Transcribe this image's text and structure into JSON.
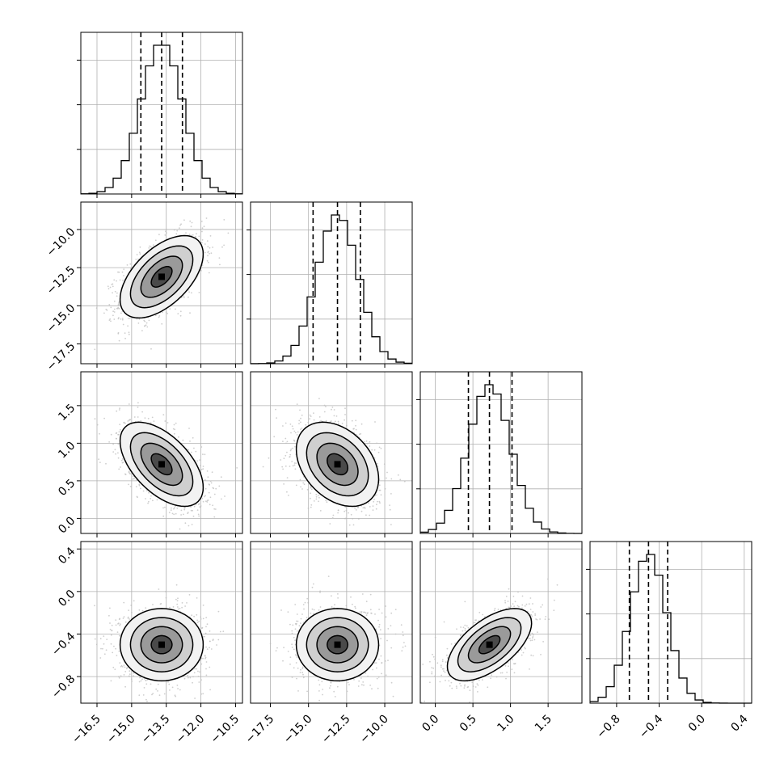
{
  "chart_data": {
    "type": "corner",
    "parameters": 4,
    "colors": {
      "frame": "#000000",
      "grid": "#b0b0b0",
      "scatter": "#bdbdbd",
      "hist": "#000000"
    },
    "grid": true,
    "axes": [
      {
        "range": [
          -17.2,
          -10.2
        ],
        "ticks": [
          -16.5,
          -15.0,
          -13.5,
          -12.0,
          -10.5
        ],
        "tick_labels": [
          "−16.5",
          "−15.0",
          "−13.5",
          "−12.0",
          "−10.5"
        ],
        "mean": -13.7,
        "sd": 0.9,
        "quantiles": [
          -14.6,
          -13.7,
          -12.8
        ]
      },
      {
        "range": [
          -18.8,
          -8.2
        ],
        "ticks": [
          -17.5,
          -15.0,
          -12.5,
          -10.0
        ],
        "tick_labels": [
          "−17.5",
          "−15.0",
          "−12.5",
          "−10.0"
        ],
        "mean": -13.1,
        "sd": 1.35,
        "quantiles": [
          -14.7,
          -13.1,
          -11.6
        ]
      },
      {
        "range": [
          -0.2,
          1.95
        ],
        "ticks": [
          0.0,
          0.5,
          1.0,
          1.5
        ],
        "tick_labels": [
          "0.0",
          "0.5",
          "1.0",
          "1.5"
        ],
        "mean": 0.72,
        "sd": 0.28,
        "quantiles": [
          0.44,
          0.72,
          1.02
        ]
      },
      {
        "range": [
          -1.05,
          0.47
        ],
        "ticks": [
          -0.8,
          -0.4,
          0.0,
          0.4
        ],
        "tick_labels": [
          "−0.8",
          "−0.4",
          "0.0",
          "0.4"
        ],
        "mean": -0.5,
        "sd": 0.17,
        "quantiles": [
          -0.68,
          -0.5,
          -0.32
        ]
      }
    ],
    "correlations": [
      [
        0,
        1,
        0.55
      ],
      [
        0,
        2,
        -0.55
      ],
      [
        1,
        2,
        -0.35
      ],
      [
        0,
        3,
        0.0
      ],
      [
        1,
        3,
        0.0
      ],
      [
        2,
        3,
        0.6
      ]
    ],
    "contour_levels_sigma": [
      0.5,
      1.0,
      1.5,
      2.0
    ],
    "samples_per_panel": 1400
  }
}
